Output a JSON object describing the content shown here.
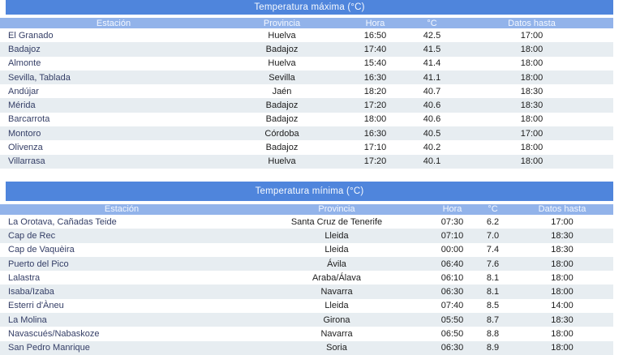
{
  "colors": {
    "title_band": "#4f85dc",
    "header_band": "#92b3ea",
    "alt_row": "#e7edf1",
    "station_text": "#343e66",
    "value_text": "#1c1c1c"
  },
  "chart_data": [
    {
      "type": "table",
      "title": "Temperatura máxima (°C)",
      "columns": [
        "Estación",
        "Provincia",
        "Hora",
        "°C",
        "Datos hasta"
      ],
      "rows": [
        [
          "El Granado",
          "Huelva",
          "16:50",
          "42.5",
          "17:00"
        ],
        [
          "Badajoz",
          "Badajoz",
          "17:40",
          "41.5",
          "18:00"
        ],
        [
          "Almonte",
          "Huelva",
          "15:40",
          "41.4",
          "18:00"
        ],
        [
          "Sevilla, Tablada",
          "Sevilla",
          "16:30",
          "41.1",
          "18:00"
        ],
        [
          "Andújar",
          "Jaén",
          "18:20",
          "40.7",
          "18:30"
        ],
        [
          "Mérida",
          "Badajoz",
          "17:20",
          "40.6",
          "18:30"
        ],
        [
          "Barcarrota",
          "Badajoz",
          "18:00",
          "40.6",
          "18:00"
        ],
        [
          "Montoro",
          "Córdoba",
          "16:30",
          "40.5",
          "17:00"
        ],
        [
          "Olivenza",
          "Badajoz",
          "17:10",
          "40.2",
          "18:00"
        ],
        [
          "Villarrasa",
          "Huelva",
          "17:20",
          "40.1",
          "18:00"
        ]
      ]
    },
    {
      "type": "table",
      "title": "Temperatura mínima (°C)",
      "columns": [
        "Estación",
        "Provincia",
        "Hora",
        "°C",
        "Datos hasta"
      ],
      "rows": [
        [
          "La Orotava, Cañadas Teide",
          "Santa Cruz de Tenerife",
          "07:30",
          "6.2",
          "17:00"
        ],
        [
          "Cap de Rec",
          "Lleida",
          "07:10",
          "7.0",
          "18:30"
        ],
        [
          "Cap de Vaquèira",
          "Lleida",
          "00:00",
          "7.4",
          "18:30"
        ],
        [
          "Puerto del Pico",
          "Ávila",
          "06:40",
          "7.6",
          "18:00"
        ],
        [
          "Lalastra",
          "Araba/Álava",
          "06:10",
          "8.1",
          "18:00"
        ],
        [
          "Isaba/Izaba",
          "Navarra",
          "06:30",
          "8.1",
          "18:00"
        ],
        [
          "Esterri d'Àneu",
          "Lleida",
          "07:40",
          "8.5",
          "14:00"
        ],
        [
          "La Molina",
          "Girona",
          "05:50",
          "8.7",
          "18:30"
        ],
        [
          "Navascués/Nabaskoze",
          "Navarra",
          "06:50",
          "8.8",
          "18:00"
        ],
        [
          "San Pedro Manrique",
          "Soria",
          "06:30",
          "8.9",
          "18:00"
        ]
      ]
    }
  ]
}
